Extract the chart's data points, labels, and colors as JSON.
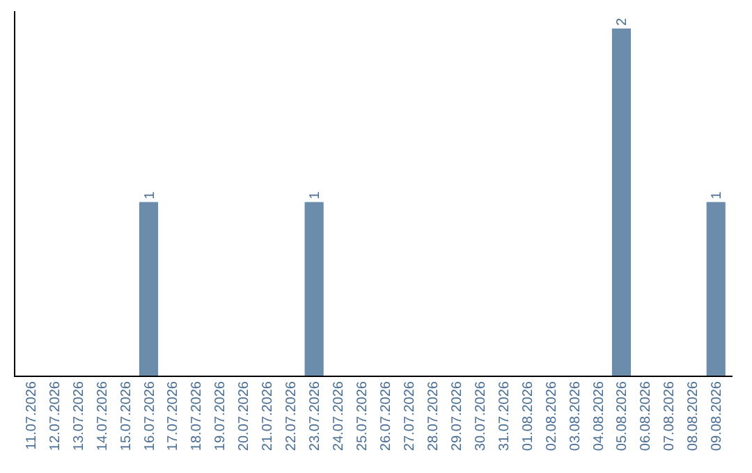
{
  "chart_data": {
    "type": "bar",
    "categories": [
      "11.07.2026",
      "12.07.2026",
      "13.07.2026",
      "14.07.2026",
      "15.07.2026",
      "16.07.2026",
      "17.07.2026",
      "18.07.2026",
      "19.07.2026",
      "20.07.2026",
      "21.07.2026",
      "22.07.2026",
      "23.07.2026",
      "24.07.2026",
      "25.07.2026",
      "26.07.2026",
      "27.07.2026",
      "28.07.2026",
      "29.07.2026",
      "30.07.2026",
      "31.07.2026",
      "01.08.2026",
      "02.08.2026",
      "03.08.2026",
      "04.08.2026",
      "05.08.2026",
      "06.08.2026",
      "07.08.2026",
      "08.08.2026",
      "09.08.2026"
    ],
    "values": [
      0,
      0,
      0,
      0,
      0,
      1,
      0,
      0,
      0,
      0,
      0,
      0,
      1,
      0,
      0,
      0,
      0,
      0,
      0,
      0,
      0,
      0,
      0,
      0,
      0,
      2,
      0,
      0,
      0,
      1
    ],
    "value_labels": [
      null,
      null,
      null,
      null,
      null,
      "1",
      null,
      null,
      null,
      null,
      null,
      null,
      "1",
      null,
      null,
      null,
      null,
      null,
      null,
      null,
      null,
      null,
      null,
      null,
      null,
      "2",
      null,
      null,
      null,
      "1"
    ],
    "color": "#6b8cab",
    "tick_labels": "x"
  }
}
